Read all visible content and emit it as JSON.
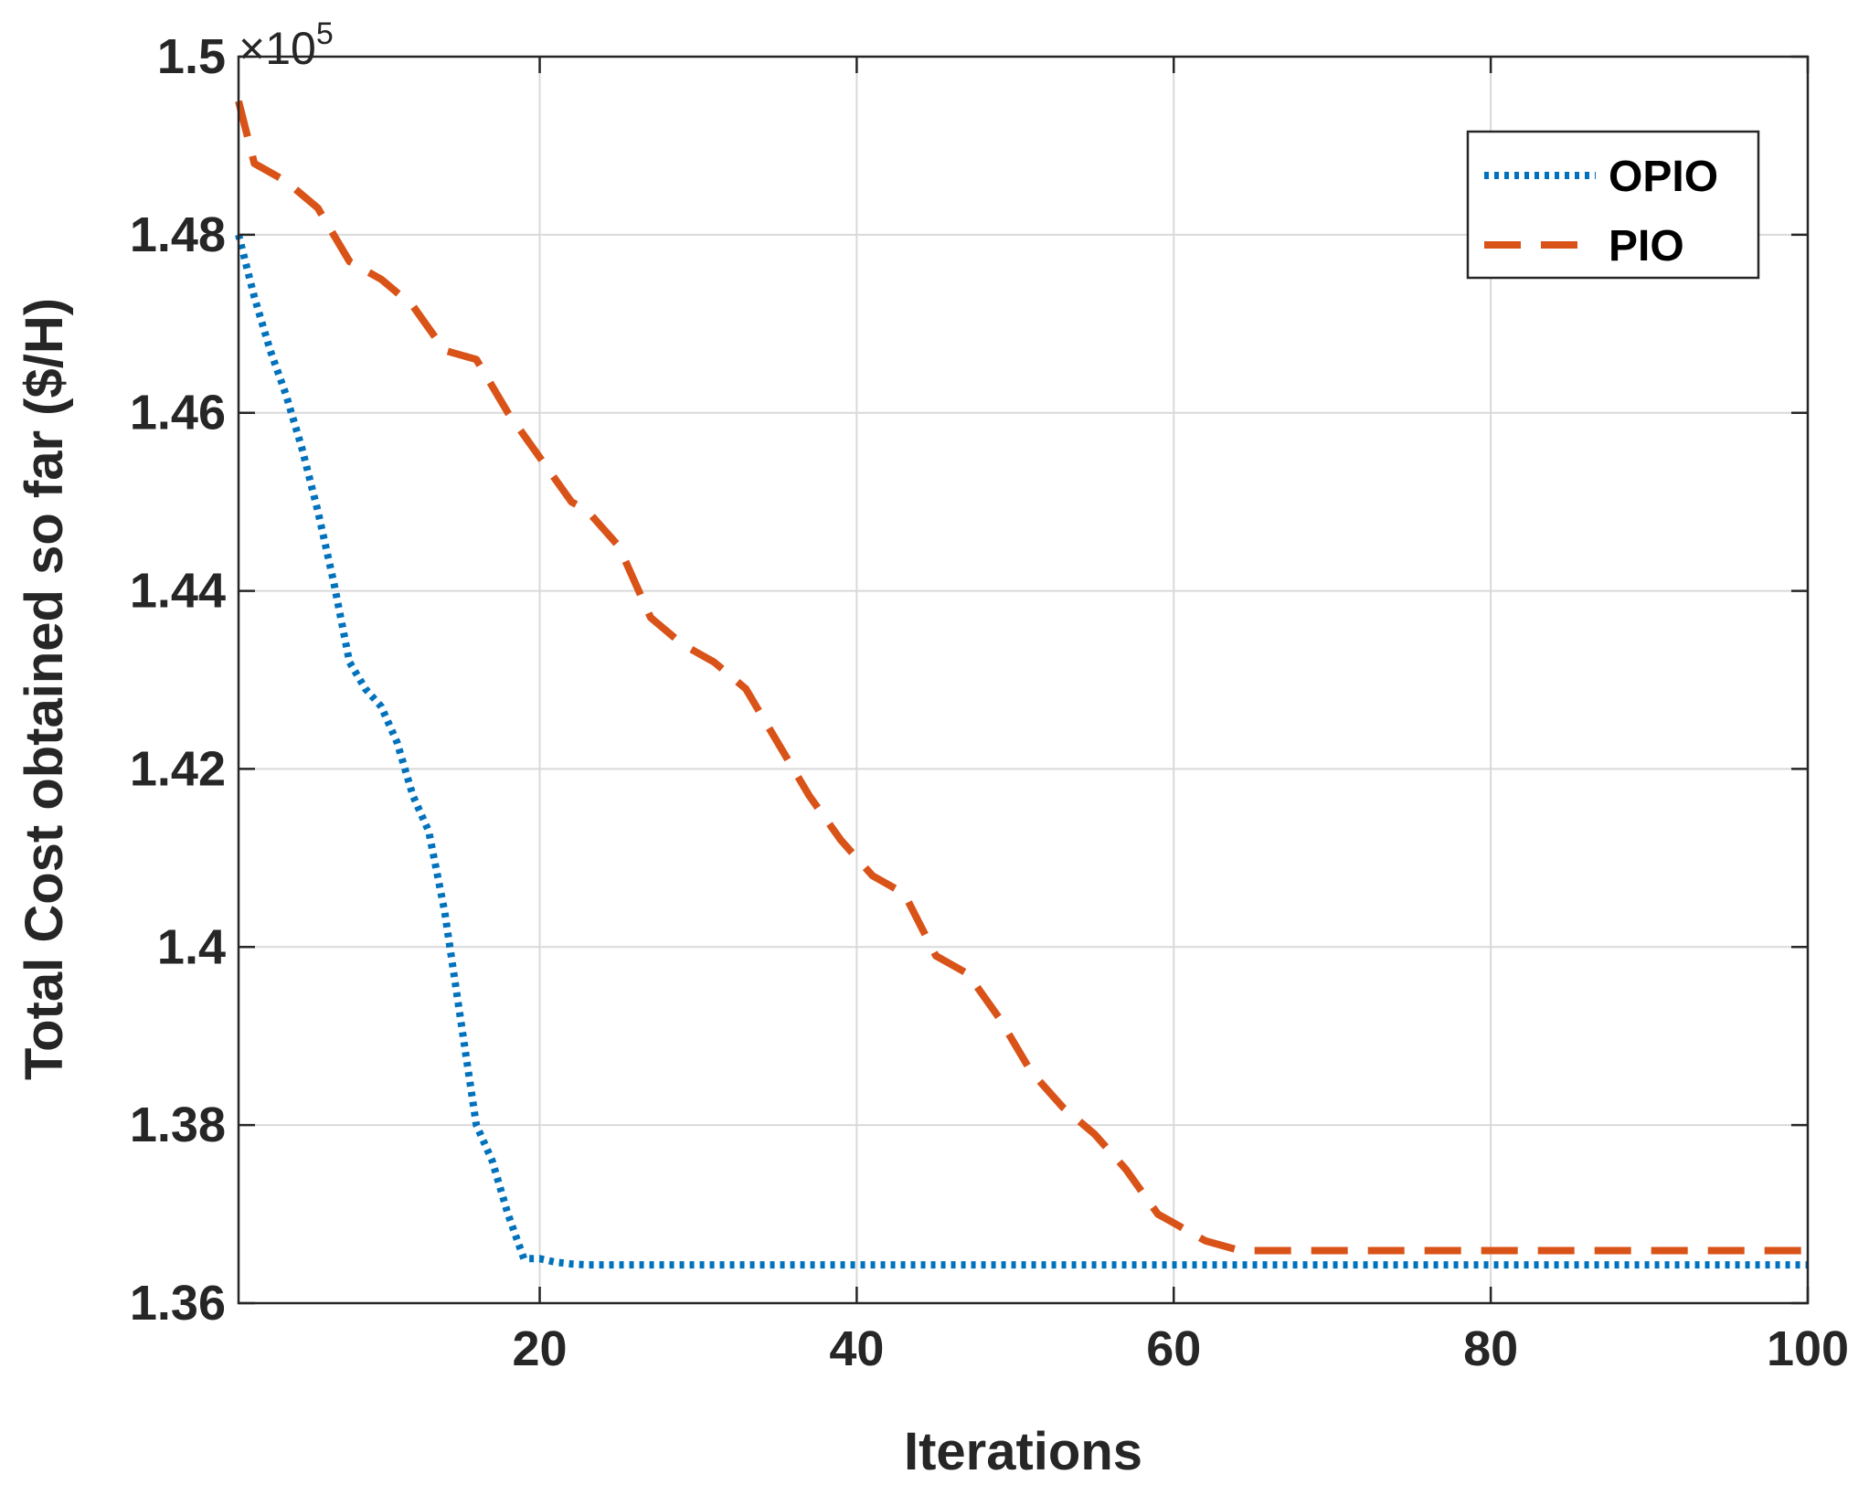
{
  "chart_data": {
    "type": "line",
    "title": "",
    "xlabel": "Iterations",
    "ylabel": "Total Cost obtained so far ($/H)",
    "xlim": [
      1,
      100
    ],
    "ylim": [
      136000,
      150000
    ],
    "y_multiplier": {
      "prefix": "×10",
      "exponent": "5"
    },
    "xticks": [
      20,
      40,
      60,
      80,
      100
    ],
    "xtick_labels": [
      "20",
      "40",
      "60",
      "80",
      "100"
    ],
    "yticks": [
      136000,
      138000,
      140000,
      142000,
      144000,
      146000,
      148000,
      150000
    ],
    "ytick_labels": [
      "1.36",
      "1.38",
      "1.4",
      "1.42",
      "1.44",
      "1.46",
      "1.48",
      "1.5"
    ],
    "grid": true,
    "legend_position": "top-right",
    "series": [
      {
        "name": "OPIO",
        "style": "dotted",
        "color": "#0072BD",
        "x": [
          1,
          2,
          3,
          4,
          5,
          6,
          7,
          8,
          9,
          10,
          11,
          12,
          13,
          14,
          15,
          16,
          17,
          18,
          19,
          20,
          21,
          22,
          23,
          24,
          25,
          26,
          30,
          40,
          50,
          60,
          70,
          80,
          90,
          100
        ],
        "y": [
          148000,
          147300,
          146700,
          146200,
          145600,
          144900,
          144100,
          143200,
          142900,
          142700,
          142300,
          141700,
          141300,
          140400,
          139200,
          138000,
          137600,
          137000,
          136500,
          136500,
          136460,
          136440,
          136430,
          136430,
          136430,
          136430,
          136430,
          136430,
          136430,
          136430,
          136430,
          136430,
          136430,
          136430
        ]
      },
      {
        "name": "PIO",
        "style": "dashed",
        "color": "#D95319",
        "x": [
          1,
          2,
          4,
          6,
          7,
          8,
          10,
          12,
          14,
          16,
          18,
          20,
          22,
          23,
          25,
          27,
          29,
          31,
          33,
          35,
          37,
          39,
          41,
          43,
          45,
          47,
          49,
          51,
          53,
          55,
          57,
          59,
          60,
          62,
          64,
          65,
          66,
          70,
          80,
          90,
          100
        ],
        "y": [
          149500,
          148800,
          148600,
          148300,
          148000,
          147700,
          147500,
          147200,
          146700,
          146600,
          146000,
          145500,
          145000,
          144900,
          144500,
          143700,
          143400,
          143200,
          142900,
          142300,
          141700,
          141200,
          140800,
          140600,
          139900,
          139700,
          139200,
          138600,
          138200,
          137900,
          137500,
          137000,
          136900,
          136700,
          136600,
          136590,
          136590,
          136590,
          136590,
          136590,
          136590
        ]
      }
    ]
  }
}
